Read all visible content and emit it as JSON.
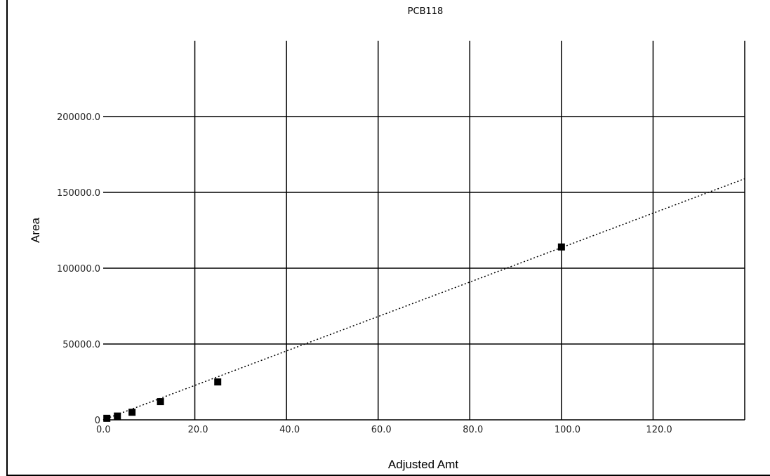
{
  "chart_data": {
    "type": "scatter",
    "title": "PCB118",
    "xlabel": "Adjusted Amt",
    "ylabel": "Area",
    "xlim": [
      0,
      140
    ],
    "ylim": [
      0,
      250000
    ],
    "x_ticks": [
      0,
      20,
      40,
      60,
      80,
      100,
      120
    ],
    "x_tick_labels": [
      "0.0",
      "20.0",
      "40.0",
      "60.0",
      "80.0",
      "100.0",
      "120.0"
    ],
    "y_ticks": [
      0,
      50000,
      100000,
      150000,
      200000
    ],
    "y_tick_labels": [
      "0",
      "50000.0",
      "100000.0",
      "150000.0",
      "200000.0"
    ],
    "grid": true,
    "series": [
      {
        "points": [
          {
            "x": 0.8,
            "y": 1000
          },
          {
            "x": 3.1,
            "y": 2500
          },
          {
            "x": 6.3,
            "y": 5000
          },
          {
            "x": 12.5,
            "y": 12000
          },
          {
            "x": 25.0,
            "y": 25000
          },
          {
            "x": 100.0,
            "y": 114000
          }
        ]
      }
    ],
    "trendline": {
      "style": "dotted",
      "x": [
        0,
        140
      ],
      "y": [
        0,
        159000
      ]
    },
    "colors": {
      "marker": "#000000",
      "grid": "#000000",
      "background": "#ffffff"
    }
  }
}
